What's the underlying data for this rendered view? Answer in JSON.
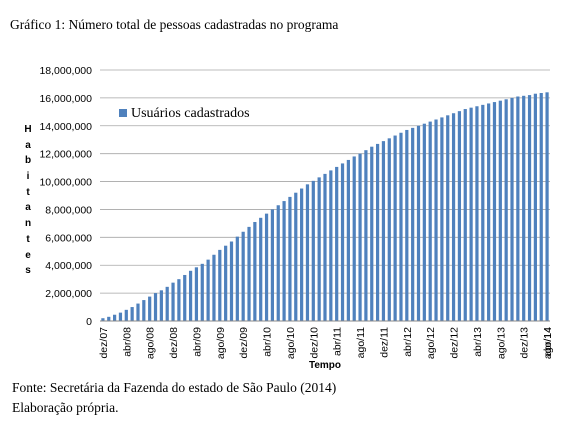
{
  "caption": {
    "title": "Gráfico 1: Número total de pessoas cadastradas no programa",
    "source": "Fonte: Secretária da Fazenda do estado de São Paulo (2014)",
    "elaboration": "Elaboração própria."
  },
  "chart_data": {
    "type": "bar",
    "title": "",
    "xlabel": "Tempo",
    "ylabel": "Habitantes",
    "ylim": [
      0,
      18000000
    ],
    "yticks": [
      "0",
      "2,000,000",
      "4,000,000",
      "6,000,000",
      "8,000,000",
      "10,000,000",
      "12,000,000",
      "14,000,000",
      "16,000,000",
      "18,000,000"
    ],
    "grid": true,
    "legend": "upper-left",
    "color": "#4f81bd",
    "xtick_labels": [
      "dez/07",
      "abr/08",
      "ago/08",
      "dez/08",
      "abr/09",
      "ago/09",
      "dez/09",
      "abr/10",
      "ago/10",
      "dez/10",
      "abr/11",
      "ago/11",
      "dez/11",
      "abr/12",
      "ago/12",
      "dez/12",
      "abr/13",
      "ago/13",
      "dez/13",
      "abr/14",
      "ago/14"
    ],
    "series": [
      {
        "name": "Usuários cadastrados",
        "values": [
          200000,
          300000,
          450000,
          600000,
          800000,
          1000000,
          1250000,
          1500000,
          1750000,
          2000000,
          2200000,
          2450000,
          2750000,
          3000000,
          3300000,
          3600000,
          3850000,
          4100000,
          4400000,
          4750000,
          5100000,
          5400000,
          5700000,
          6050000,
          6400000,
          6750000,
          7100000,
          7400000,
          7700000,
          8000000,
          8300000,
          8600000,
          8900000,
          9200000,
          9500000,
          9800000,
          10050000,
          10300000,
          10550000,
          10800000,
          11050000,
          11300000,
          11550000,
          11800000,
          12000000,
          12250000,
          12500000,
          12700000,
          12900000,
          13100000,
          13300000,
          13500000,
          13700000,
          13850000,
          14000000,
          14150000,
          14300000,
          14450000,
          14600000,
          14750000,
          14900000,
          15050000,
          15200000,
          15300000,
          15400000,
          15500000,
          15600000,
          15700000,
          15800000,
          15900000,
          16000000,
          16100000,
          16150000,
          16200000,
          16300000,
          16350000,
          16400000
        ]
      }
    ]
  }
}
